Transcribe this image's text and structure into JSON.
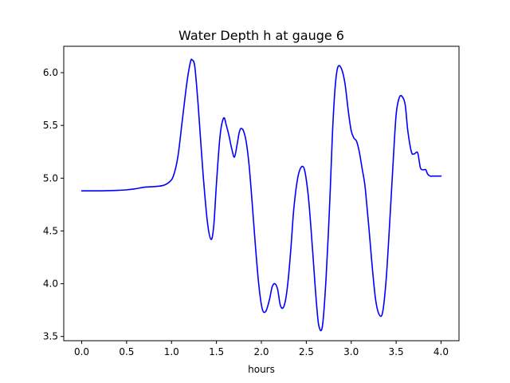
{
  "chart_data": {
    "type": "line",
    "title": "Water Depth h at gauge 6",
    "xlabel": "hours",
    "ylabel": "",
    "xlim": [
      -0.2,
      4.2
    ],
    "ylim": [
      3.46,
      6.25
    ],
    "xticks": [
      0.0,
      0.5,
      1.0,
      1.5,
      2.0,
      2.5,
      3.0,
      3.5,
      4.0
    ],
    "xtick_labels": [
      "0.0",
      "0.5",
      "1.0",
      "1.5",
      "2.0",
      "2.5",
      "3.0",
      "3.5",
      "4.0"
    ],
    "yticks": [
      3.5,
      4.0,
      4.5,
      5.0,
      5.5,
      6.0
    ],
    "ytick_labels": [
      "3.5",
      "4.0",
      "4.5",
      "5.0",
      "5.5",
      "6.0"
    ],
    "grid": false,
    "series": [
      {
        "color": "#0000ff",
        "x": [
          0.0,
          0.2,
          0.4,
          0.5,
          0.6,
          0.7,
          0.8,
          0.9,
          0.97,
          1.02,
          1.07,
          1.12,
          1.17,
          1.21,
          1.23,
          1.26,
          1.3,
          1.35,
          1.4,
          1.44,
          1.47,
          1.5,
          1.54,
          1.58,
          1.61,
          1.64,
          1.67,
          1.7,
          1.73,
          1.75,
          1.77,
          1.8,
          1.83,
          1.86,
          1.89,
          1.93,
          1.97,
          2.01,
          2.05,
          2.09,
          2.12,
          2.15,
          2.18,
          2.21,
          2.24,
          2.27,
          2.3,
          2.33,
          2.36,
          2.4,
          2.44,
          2.48,
          2.52,
          2.55,
          2.58,
          2.61,
          2.64,
          2.68,
          2.72,
          2.76,
          2.79,
          2.82,
          2.85,
          2.89,
          2.93,
          2.97,
          3.0,
          3.03,
          3.06,
          3.09,
          3.12,
          3.15,
          3.17,
          3.2,
          3.23,
          3.27,
          3.31,
          3.35,
          3.39,
          3.43,
          3.47,
          3.5,
          3.53,
          3.56,
          3.6,
          3.63,
          3.67,
          3.7,
          3.74,
          3.77,
          3.8,
          3.83,
          3.85,
          3.88,
          3.9,
          3.93,
          3.96,
          4.0
        ],
        "y": [
          4.88,
          4.88,
          4.885,
          4.89,
          4.9,
          4.915,
          4.92,
          4.93,
          4.96,
          5.02,
          5.2,
          5.55,
          5.9,
          6.1,
          6.12,
          6.05,
          5.65,
          5.05,
          4.58,
          4.42,
          4.55,
          4.95,
          5.4,
          5.57,
          5.5,
          5.4,
          5.28,
          5.2,
          5.32,
          5.42,
          5.47,
          5.45,
          5.35,
          5.15,
          4.85,
          4.4,
          4.0,
          3.76,
          3.74,
          3.85,
          3.97,
          4.0,
          3.95,
          3.8,
          3.77,
          3.85,
          4.05,
          4.35,
          4.7,
          4.98,
          5.1,
          5.08,
          4.85,
          4.55,
          4.2,
          3.85,
          3.6,
          3.6,
          4.05,
          4.75,
          5.4,
          5.85,
          6.05,
          6.04,
          5.9,
          5.62,
          5.45,
          5.38,
          5.35,
          5.25,
          5.1,
          4.95,
          4.78,
          4.5,
          4.2,
          3.86,
          3.71,
          3.73,
          4.05,
          4.6,
          5.2,
          5.6,
          5.75,
          5.78,
          5.7,
          5.45,
          5.25,
          5.23,
          5.24,
          5.1,
          5.08,
          5.08,
          5.04,
          5.02,
          5.02,
          5.02,
          5.02,
          5.02
        ]
      }
    ]
  }
}
